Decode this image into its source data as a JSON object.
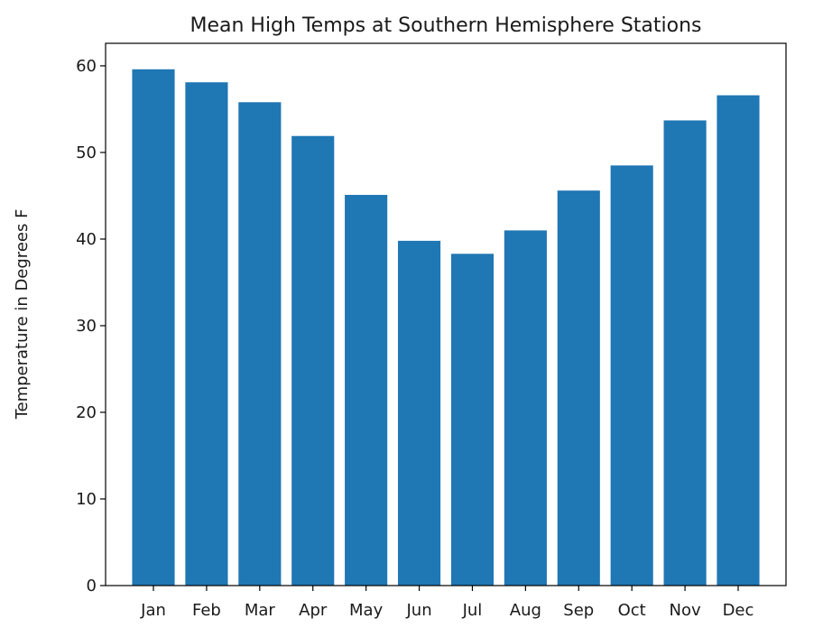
{
  "chart_data": {
    "type": "bar",
    "title": "Mean High Temps at Southern Hemisphere Stations",
    "xlabel": "",
    "ylabel": "Temperature in Degrees F",
    "categories": [
      "Jan",
      "Feb",
      "Mar",
      "Apr",
      "May",
      "Jun",
      "Jul",
      "Aug",
      "Sep",
      "Oct",
      "Nov",
      "Dec"
    ],
    "values": [
      59.6,
      58.1,
      55.8,
      51.9,
      45.1,
      39.8,
      38.3,
      41.0,
      45.6,
      48.5,
      53.7,
      56.6
    ],
    "ylim": [
      0,
      62.6
    ],
    "yticks": [
      0,
      10,
      20,
      30,
      40,
      50,
      60
    ],
    "bar_color": "#1f77b4",
    "grid": false,
    "legend": "none"
  }
}
